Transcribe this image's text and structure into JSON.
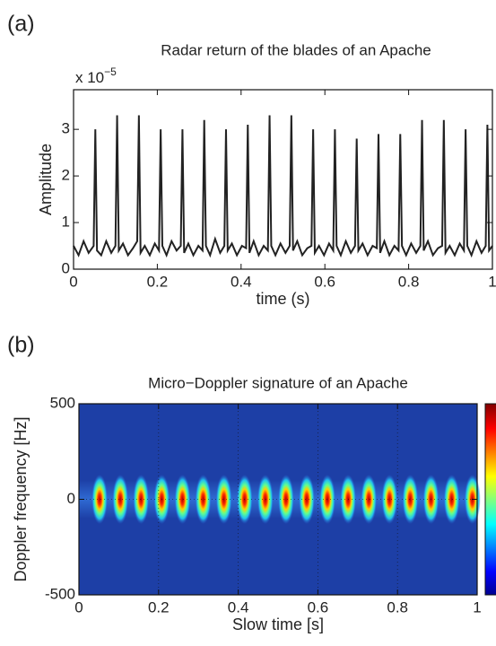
{
  "chart_data": [
    {
      "type": "line",
      "panel_label": "(a)",
      "title": "Radar return of  the blades of an Apache",
      "xlabel": "time (s)",
      "ylabel": "Amplitude",
      "multiplier": {
        "base": "x 10",
        "exponent": "−5"
      },
      "color": "#222222",
      "xlim": [
        0,
        1
      ],
      "xticks": [
        0,
        0.2,
        0.4,
        0.6,
        0.8,
        1
      ],
      "ylim": [
        0,
        3.85
      ],
      "yticks": [
        0,
        1,
        2,
        3
      ],
      "x": [
        0,
        0.012,
        0.024,
        0.036,
        0.048,
        0.052,
        0.056,
        0.066,
        0.078,
        0.09,
        0.1,
        0.104,
        0.108,
        0.118,
        0.13,
        0.142,
        0.152,
        0.156,
        0.16,
        0.17,
        0.182,
        0.194,
        0.204,
        0.208,
        0.212,
        0.222,
        0.234,
        0.246,
        0.256,
        0.26,
        0.264,
        0.274,
        0.286,
        0.298,
        0.308,
        0.312,
        0.316,
        0.326,
        0.338,
        0.35,
        0.36,
        0.364,
        0.368,
        0.378,
        0.39,
        0.402,
        0.412,
        0.416,
        0.42,
        0.43,
        0.442,
        0.454,
        0.464,
        0.468,
        0.472,
        0.482,
        0.494,
        0.506,
        0.516,
        0.52,
        0.524,
        0.534,
        0.546,
        0.558,
        0.568,
        0.572,
        0.576,
        0.586,
        0.598,
        0.61,
        0.62,
        0.624,
        0.628,
        0.638,
        0.65,
        0.662,
        0.672,
        0.676,
        0.68,
        0.69,
        0.702,
        0.714,
        0.724,
        0.728,
        0.732,
        0.742,
        0.754,
        0.766,
        0.776,
        0.78,
        0.784,
        0.794,
        0.806,
        0.818,
        0.828,
        0.832,
        0.836,
        0.846,
        0.858,
        0.87,
        0.88,
        0.884,
        0.888,
        0.898,
        0.91,
        0.922,
        0.932,
        0.936,
        0.94,
        0.95,
        0.962,
        0.974,
        0.984,
        0.988,
        0.992,
        1
      ],
      "values": [
        0.5,
        0.3,
        0.6,
        0.35,
        0.5,
        3.0,
        0.4,
        0.3,
        0.6,
        0.35,
        0.5,
        3.3,
        0.4,
        0.55,
        0.3,
        0.45,
        0.6,
        3.3,
        0.35,
        0.5,
        0.3,
        0.55,
        0.4,
        3.0,
        0.5,
        0.3,
        0.6,
        0.4,
        0.5,
        3.0,
        0.35,
        0.55,
        0.3,
        0.5,
        0.4,
        3.2,
        0.5,
        0.3,
        0.65,
        0.35,
        0.5,
        3.0,
        0.4,
        0.55,
        0.3,
        0.5,
        0.45,
        3.1,
        0.35,
        0.6,
        0.3,
        0.5,
        0.4,
        3.3,
        0.5,
        0.3,
        0.55,
        0.35,
        0.5,
        3.3,
        0.4,
        0.6,
        0.3,
        0.45,
        0.5,
        3.0,
        0.35,
        0.5,
        0.3,
        0.55,
        0.4,
        3.0,
        0.5,
        0.3,
        0.6,
        0.35,
        0.5,
        2.8,
        0.4,
        0.55,
        0.3,
        0.5,
        0.45,
        2.9,
        0.35,
        0.6,
        0.3,
        0.5,
        0.4,
        2.9,
        0.5,
        0.3,
        0.55,
        0.35,
        0.5,
        3.2,
        0.4,
        0.6,
        0.3,
        0.45,
        0.5,
        3.2,
        0.35,
        0.5,
        0.3,
        0.55,
        0.4,
        3.0,
        0.5,
        0.3,
        0.6,
        0.35,
        0.5,
        3.1,
        0.4,
        0.5
      ]
    },
    {
      "type": "spectrogram",
      "panel_label": "(b)",
      "title": "Micro−Doppler signature of an Apache",
      "xlabel": "Slow time [s]",
      "ylabel": "Doppler frequency [Hz]",
      "xlim": [
        0,
        1
      ],
      "xticks": [
        0,
        0.2,
        0.4,
        0.6,
        0.8,
        1
      ],
      "ylim": [
        -500,
        500
      ],
      "yticks": [
        -500,
        0,
        500
      ],
      "grid": true,
      "colorbar": true,
      "x": [
        0.052,
        0.104,
        0.156,
        0.208,
        0.26,
        0.312,
        0.364,
        0.416,
        0.468,
        0.52,
        0.572,
        0.624,
        0.676,
        0.728,
        0.78,
        0.832,
        0.884,
        0.936,
        0.988
      ],
      "values": [
        0,
        0,
        0,
        0,
        0,
        0,
        0,
        0,
        0,
        0,
        0,
        0,
        0,
        0,
        0,
        0,
        0,
        0,
        0
      ],
      "spread": 130
    }
  ]
}
